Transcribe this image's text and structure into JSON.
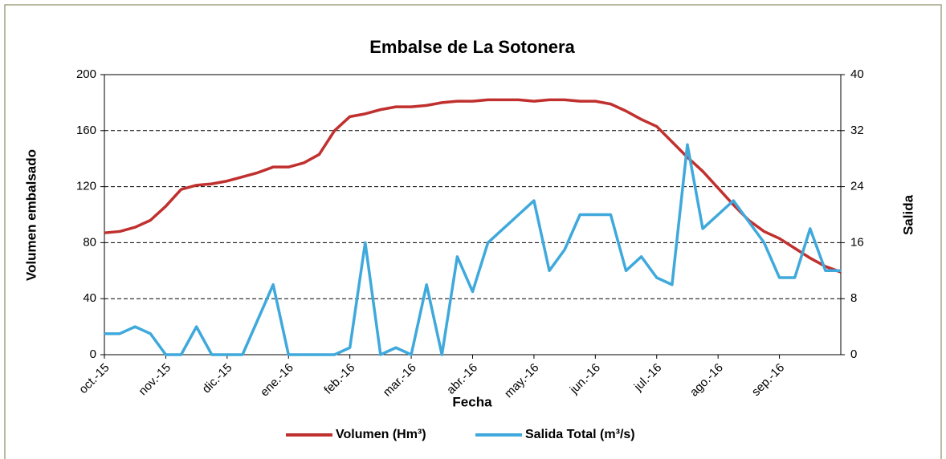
{
  "chart_data": {
    "type": "line",
    "title": "Embalse de La Sotonera",
    "xlabel": "Fecha",
    "ylabel": "Volumen embalsado",
    "y2label": "Salida",
    "x": [
      0,
      0.25,
      0.5,
      0.75,
      1,
      1.25,
      1.5,
      1.75,
      2,
      2.25,
      2.5,
      2.75,
      3,
      3.25,
      3.5,
      3.75,
      4,
      4.25,
      4.5,
      4.75,
      5,
      5.25,
      5.5,
      5.75,
      6,
      6.25,
      6.5,
      6.75,
      7,
      7.25,
      7.5,
      7.75,
      8,
      8.25,
      8.5,
      8.75,
      9,
      9.25,
      9.5,
      9.75,
      10,
      10.25,
      10.5,
      10.75,
      11,
      11.25,
      11.5,
      11.75,
      12
    ],
    "xlim": [
      0,
      12
    ],
    "xticks": [
      {
        "value": 0,
        "label": "oct.-15"
      },
      {
        "value": 1,
        "label": "nov.-15"
      },
      {
        "value": 2,
        "label": "dic.-15"
      },
      {
        "value": 3,
        "label": "ene.-16"
      },
      {
        "value": 4,
        "label": "feb.-16"
      },
      {
        "value": 5,
        "label": "mar.-16"
      },
      {
        "value": 6,
        "label": "abr.-16"
      },
      {
        "value": 7,
        "label": "may.-16"
      },
      {
        "value": 8,
        "label": "jun.-16"
      },
      {
        "value": 9,
        "label": "jul.-16"
      },
      {
        "value": 10,
        "label": "ago.-16"
      },
      {
        "value": 11,
        "label": "sep.-16"
      }
    ],
    "ylim": [
      0,
      200
    ],
    "yticks": [
      0,
      40,
      80,
      120,
      160,
      200
    ],
    "y2lim": [
      0,
      40
    ],
    "y2ticks": [
      0,
      8,
      16,
      24,
      32,
      40
    ],
    "grid": true,
    "legend": "bottom",
    "series": [
      {
        "name": "Volumen (Hm³)",
        "color": "#c0302e",
        "values": [
          87,
          88,
          91,
          96,
          106,
          118,
          121,
          122,
          124,
          127,
          130,
          134,
          134,
          137,
          143,
          160,
          170,
          172,
          175,
          177,
          177,
          178,
          180,
          181,
          181,
          182,
          182,
          182,
          181,
          182,
          182,
          181,
          181,
          179,
          174,
          168,
          163,
          152,
          141,
          131,
          119,
          107,
          96,
          88,
          83,
          76,
          69,
          63,
          59
        ]
      },
      {
        "name": "Salida Total (m³/s)",
        "color": "#3fa9dc",
        "axis": "y2",
        "values": [
          3,
          3,
          4,
          3,
          0,
          0,
          4,
          0,
          0,
          0,
          5,
          10,
          0,
          0,
          0,
          0,
          1,
          16,
          0,
          1,
          0,
          10,
          0,
          14,
          9,
          16,
          18,
          20,
          22,
          12,
          15,
          20,
          20,
          20,
          12,
          14,
          11,
          10,
          30,
          18,
          20,
          22,
          19,
          16,
          11,
          11,
          18,
          12,
          12
        ]
      }
    ]
  }
}
